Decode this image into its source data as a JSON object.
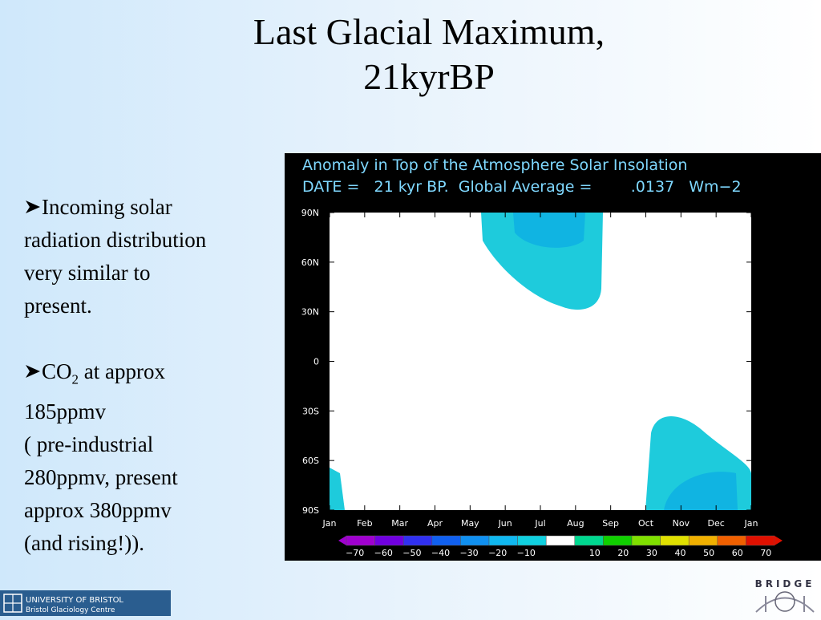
{
  "title": [
    "Last Glacial Maximum,",
    "21kyrBP"
  ],
  "bullets": [
    {
      "lines": [
        "Incoming solar",
        "radiation distribution",
        "very similar to",
        "present."
      ]
    },
    {
      "lead": [
        "CO",
        "2",
        " at approx"
      ],
      "lines": [
        "185ppmv",
        "( pre-industrial",
        "280ppmv, present",
        "approx 380ppmv",
        "(and rising!))."
      ]
    }
  ],
  "figure": {
    "header": [
      "Anomaly in Top of the Atmosphere Solar Insolation",
      "DATE =   21 kyr BP.  Global Average =        .0137   Wm−2"
    ],
    "y_labels": [
      "90N",
      "60N",
      "30N",
      "0",
      "30S",
      "60S",
      "90S"
    ],
    "x_labels": [
      "Jan",
      "Feb",
      "Mar",
      "Apr",
      "May",
      "Jun",
      "Jul",
      "Aug",
      "Sep",
      "Oct",
      "Nov",
      "Dec",
      "Jan"
    ],
    "colorbar_labels": [
      "−70",
      "−60",
      "−50",
      "−40",
      "−30",
      "−20",
      "−10",
      "10",
      "20",
      "30",
      "40",
      "50",
      "60",
      "70"
    ]
  },
  "footer": {
    "university": "UNIVERSITY OF BRISTOL",
    "centre": "Bristol Glaciology Centre",
    "project": "BRIDGE"
  }
}
